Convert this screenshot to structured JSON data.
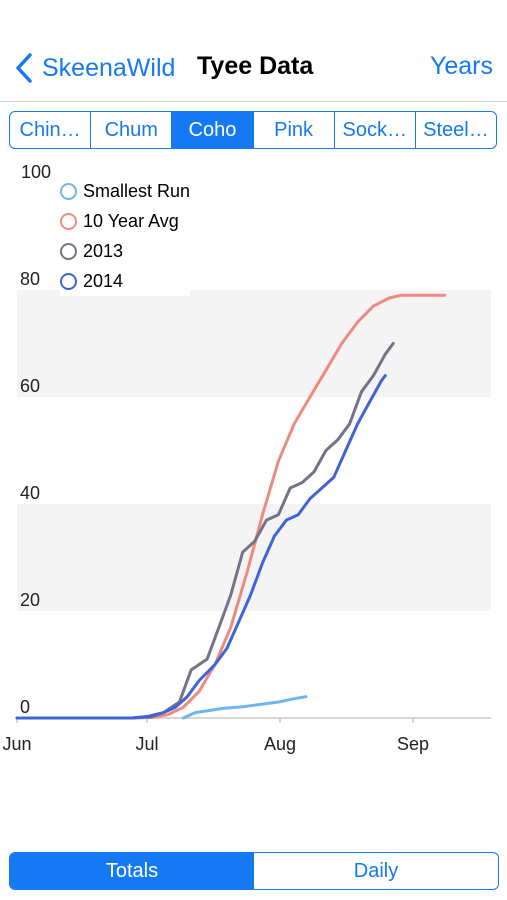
{
  "nav": {
    "back_label": "SkeenaWild",
    "title": "Tyee Data",
    "right_label": "Years"
  },
  "species_tabs": [
    {
      "label": "Chin…",
      "active": false
    },
    {
      "label": "Chum",
      "active": false
    },
    {
      "label": "Coho",
      "active": true
    },
    {
      "label": "Pink",
      "active": false
    },
    {
      "label": "Sock…",
      "active": false
    },
    {
      "label": "Steel…",
      "active": false
    }
  ],
  "bottom_tabs": [
    {
      "label": "Totals",
      "active": true
    },
    {
      "label": "Daily",
      "active": false
    }
  ],
  "colors": {
    "accent": "#1479f2",
    "smallest": "#6fb6ec",
    "avg": "#ee8a80",
    "y2013": "#73738a",
    "y2014": "#3f63d8"
  },
  "chart_data": {
    "type": "line",
    "x_ticks": [
      "Jun",
      "Jul",
      "Aug",
      "Sep"
    ],
    "y_ticks": [
      "0",
      "20",
      "40",
      "60",
      "80",
      "100"
    ],
    "ylim": [
      0,
      100
    ],
    "xlim_days": [
      0,
      108
    ],
    "legend_position": "top-left",
    "series": [
      {
        "name": "Smallest Run",
        "color": "#6fb6ec",
        "points": [
          [
            42,
            0
          ],
          [
            45,
            1
          ],
          [
            52,
            1.8
          ],
          [
            57,
            2.1
          ],
          [
            62,
            2.6
          ],
          [
            66,
            3
          ],
          [
            70,
            3.6
          ],
          [
            73,
            4
          ]
        ]
      },
      {
        "name": "10 Year Avg",
        "color": "#ee8a80",
        "points": [
          [
            0,
            0
          ],
          [
            29,
            0
          ],
          [
            34,
            0.1
          ],
          [
            38,
            0.6
          ],
          [
            42,
            2
          ],
          [
            46,
            5
          ],
          [
            50,
            10
          ],
          [
            54,
            17
          ],
          [
            58,
            27
          ],
          [
            62,
            38
          ],
          [
            66,
            48
          ],
          [
            70,
            55
          ],
          [
            74,
            60
          ],
          [
            78,
            65
          ],
          [
            82,
            70
          ],
          [
            86,
            74
          ],
          [
            90,
            77
          ],
          [
            94,
            78.5
          ],
          [
            97,
            79
          ],
          [
            108,
            79
          ]
        ]
      },
      {
        "name": "2013",
        "color": "#73738a",
        "points": [
          [
            0,
            0
          ],
          [
            29,
            0
          ],
          [
            34,
            0.2
          ],
          [
            37,
            1
          ],
          [
            41,
            3
          ],
          [
            44,
            9
          ],
          [
            48,
            11
          ],
          [
            51,
            17
          ],
          [
            54,
            23
          ],
          [
            57,
            31
          ],
          [
            60,
            33
          ],
          [
            63,
            37
          ],
          [
            66,
            38
          ],
          [
            69,
            43
          ],
          [
            72,
            44
          ],
          [
            75,
            46
          ],
          [
            78,
            50
          ],
          [
            81,
            52
          ],
          [
            84,
            55
          ],
          [
            87,
            61
          ],
          [
            90,
            64
          ],
          [
            93,
            68
          ],
          [
            95,
            70
          ]
        ]
      },
      {
        "name": "2014",
        "color": "#3f63d8",
        "points": [
          [
            0,
            0
          ],
          [
            29,
            0
          ],
          [
            33,
            0.3
          ],
          [
            37,
            1
          ],
          [
            40,
            2
          ],
          [
            43,
            4
          ],
          [
            46,
            7
          ],
          [
            50,
            10
          ],
          [
            53,
            13
          ],
          [
            56,
            18
          ],
          [
            59,
            23
          ],
          [
            62,
            29
          ],
          [
            65,
            34
          ],
          [
            68,
            37
          ],
          [
            71,
            38
          ],
          [
            74,
            41
          ],
          [
            77,
            43
          ],
          [
            80,
            45
          ],
          [
            83,
            50
          ],
          [
            86,
            55
          ],
          [
            89,
            59
          ],
          [
            92,
            63
          ],
          [
            93,
            64
          ]
        ]
      }
    ]
  }
}
